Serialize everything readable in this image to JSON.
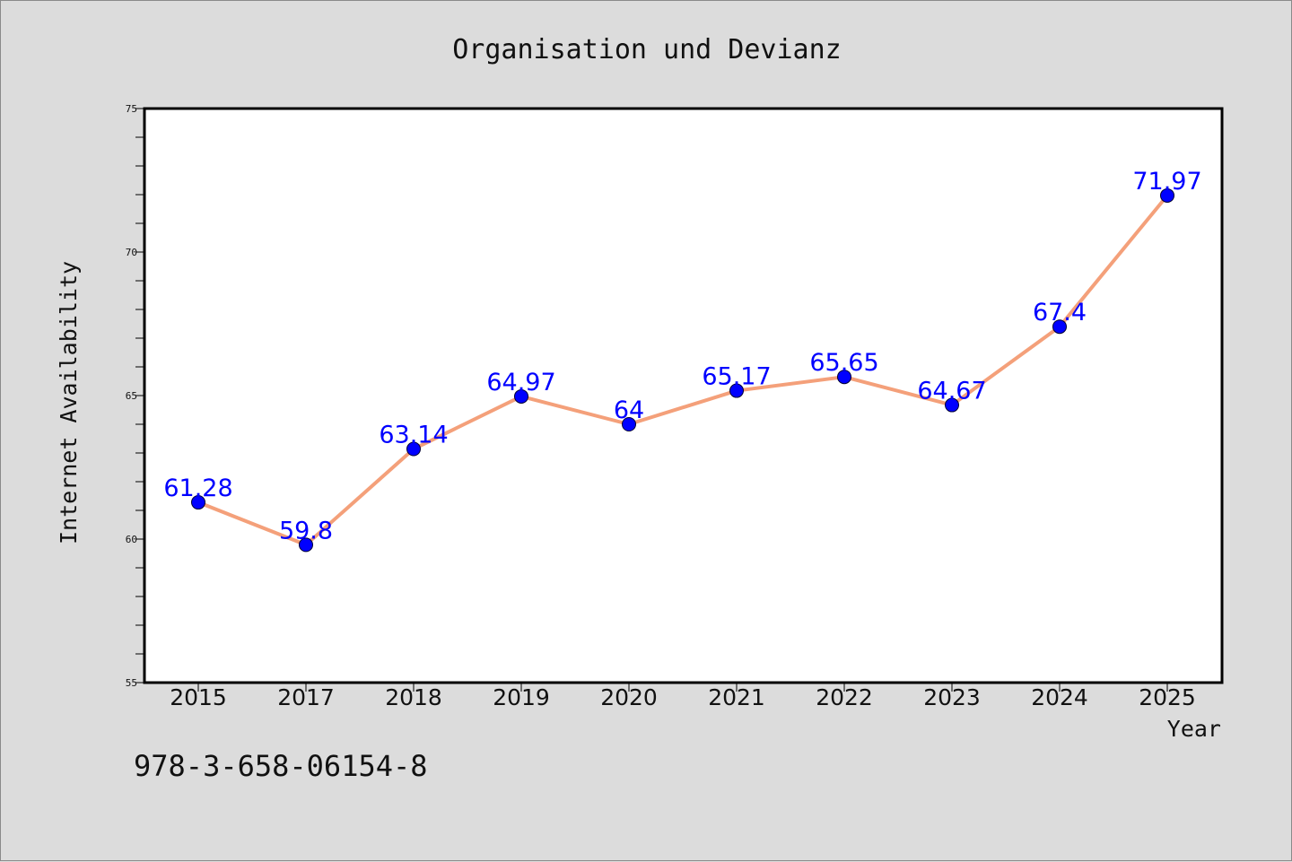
{
  "chart_data": {
    "type": "line",
    "title": "Organisation und Devianz",
    "xlabel": "Year",
    "ylabel": "Internet Availability",
    "categories": [
      "2015",
      "2017",
      "2018",
      "2019",
      "2020",
      "2021",
      "2022",
      "2023",
      "2024",
      "2025"
    ],
    "series": [
      {
        "values": [
          61.28,
          59.8,
          63.14,
          64.97,
          64,
          65.17,
          65.65,
          64.67,
          67.4,
          71.97
        ],
        "data_labels": [
          "61.28",
          "59.8",
          "63.14",
          "64.97",
          "64",
          "65.17",
          "65.65",
          "64.67",
          "67.4",
          "71.97"
        ],
        "line_color": "#f4a07a",
        "marker_color": "#0000ff"
      }
    ],
    "ylim": [
      55,
      75
    ],
    "yticks": [
      "55",
      "60",
      "65",
      "70",
      "75"
    ],
    "grid": false,
    "legend": "none",
    "background_color": "#dcdcdc",
    "plot_background_color": "#ffffff"
  },
  "footnote": "978-3-658-06154-8"
}
